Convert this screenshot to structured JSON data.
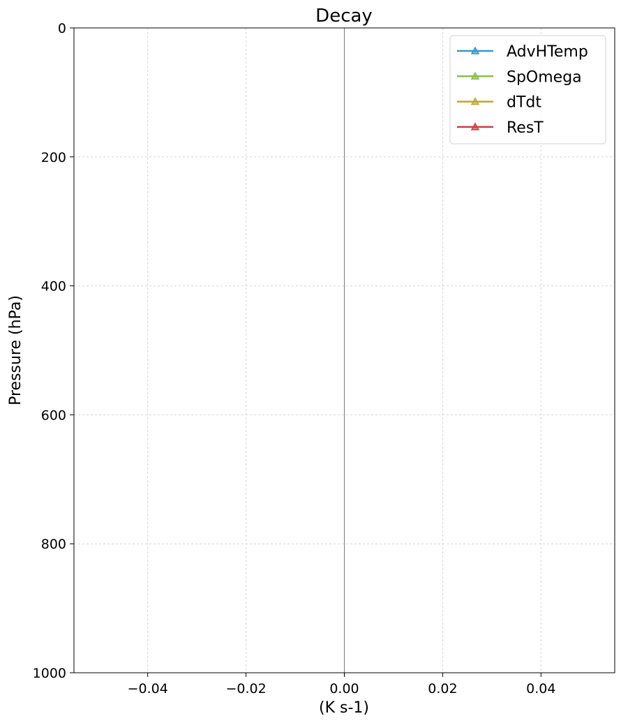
{
  "chart_data": {
    "type": "line",
    "title": "Decay",
    "xlabel": "(K s-1)",
    "ylabel": "Pressure (hPa)",
    "xlim": [
      -0.055,
      0.055
    ],
    "ylim": [
      1000,
      0
    ],
    "y_inverted": true,
    "x_ticks": [
      -0.04,
      -0.02,
      0.0,
      0.02,
      0.04
    ],
    "x_tick_labels": [
      "−0.04",
      "−0.02",
      "0.00",
      "0.02",
      "0.04"
    ],
    "y_ticks": [
      0,
      200,
      400,
      600,
      800,
      1000
    ],
    "y_tick_labels": [
      "0",
      "200",
      "400",
      "600",
      "800",
      "1000"
    ],
    "grid": true,
    "zero_line": true,
    "legend_position": "top-right",
    "marker": "triangle",
    "series": [
      {
        "name": "AdvHTemp",
        "color": "#3a95c8",
        "x": [],
        "y": []
      },
      {
        "name": "SpOmega",
        "color": "#86c04a",
        "x": [],
        "y": []
      },
      {
        "name": "dTdt",
        "color": "#bca836",
        "x": [],
        "y": []
      },
      {
        "name": "ResT",
        "color": "#c8413a",
        "x": [],
        "y": []
      }
    ]
  }
}
